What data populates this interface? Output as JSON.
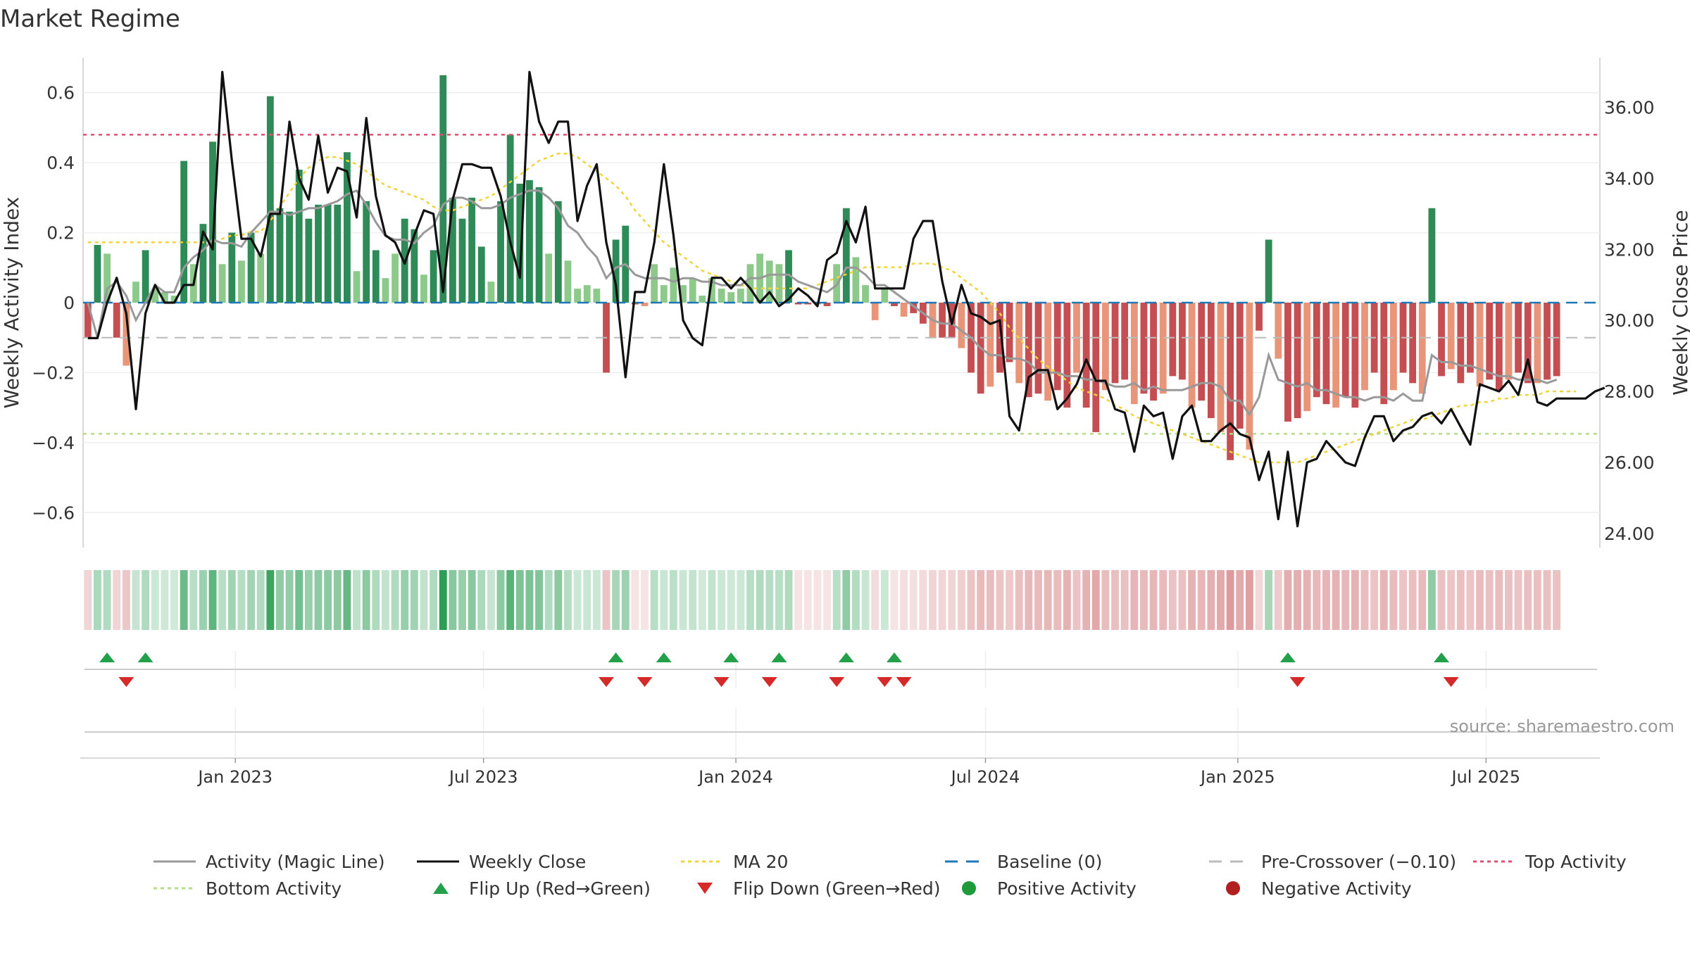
{
  "page": {
    "title": "Market Regime",
    "source": "source: sharemaestro.com"
  },
  "chart_data": {
    "type": "bar",
    "title": "Market Regime",
    "ylabel_left": "Weekly Activity Index",
    "ylabel_right": "Weekly Close Price",
    "ylim_left": [
      -0.7,
      0.7
    ],
    "ylim_right": [
      23.6,
      37.4
    ],
    "yticks_left": [
      "0.6",
      "0.4",
      "0.2",
      "0",
      "−0.2",
      "−0.4",
      "−0.6"
    ],
    "yticks_right": [
      "36.00",
      "34.00",
      "32.00",
      "30.00",
      "28.00",
      "26.00",
      "24.00"
    ],
    "x_ticks": [
      "Jan 2023",
      "Jul 2023",
      "Jan 2024",
      "Jul 2024",
      "Jan 2025",
      "Jul 2025"
    ],
    "x_tick_dates": [
      "2023-01-01",
      "2023-07-01",
      "2024-01-01",
      "2024-07-01",
      "2025-01-01",
      "2025-07-01"
    ],
    "x_start_date": "2022-09-12",
    "week_count": 158,
    "top_activity": 0.48,
    "bottom_activity": -0.375,
    "pre_crossover": -0.1,
    "baseline": 0,
    "grid": true,
    "legend_position": "bottom",
    "colors": {
      "pos_strong": "#2e8b57",
      "pos_light": "#8cc98a",
      "neg_strong": "#c44e52",
      "neg_light": "#e8957a",
      "magic_line": "#999999",
      "close": "#111111",
      "ma20": "#f0d43a",
      "baseline": "#1f77b4",
      "pre_crossover": "#bbbbbb",
      "top_activity": "#e0506e",
      "bottom_activity": "#b5dc8a",
      "flip_up": "#23a04a",
      "flip_down": "#d62a2a",
      "positive_marker": "#1f9a3a",
      "negative_marker": "#b02020"
    },
    "activity": [
      -0.1,
      0.165,
      0.14,
      -0.1,
      -0.18,
      0.06,
      0.15,
      0.04,
      0.03,
      0.02,
      0.405,
      0.11,
      0.225,
      0.46,
      0.11,
      0.2,
      0.12,
      0.2,
      0.14,
      0.59,
      0.27,
      0.26,
      0.38,
      0.24,
      0.28,
      0.28,
      0.28,
      0.43,
      0.09,
      0.29,
      0.15,
      0.07,
      0.14,
      0.24,
      0.21,
      0.08,
      0.15,
      0.65,
      0.3,
      0.24,
      0.3,
      0.16,
      0.06,
      0.29,
      0.48,
      0.34,
      0.35,
      0.33,
      0.14,
      0.29,
      0.12,
      0.04,
      0.05,
      0.04,
      -0.2,
      0.18,
      0.22,
      -0.005,
      -0.01,
      0.11,
      0.05,
      0.1,
      0.05,
      0.07,
      0.02,
      0.07,
      0.04,
      0.03,
      0.04,
      0.11,
      0.14,
      0.12,
      0.11,
      0.15,
      -0.005,
      -0.005,
      -0.005,
      -0.01,
      0.11,
      0.27,
      0.13,
      0.05,
      -0.05,
      0.04,
      -0.01,
      -0.04,
      -0.03,
      -0.06,
      -0.1,
      -0.1,
      -0.1,
      -0.13,
      -0.2,
      -0.26,
      -0.24,
      -0.2,
      -0.17,
      -0.23,
      -0.27,
      -0.26,
      -0.28,
      -0.25,
      -0.3,
      -0.2,
      -0.3,
      -0.37,
      -0.25,
      -0.23,
      -0.22,
      -0.29,
      -0.26,
      -0.28,
      -0.26,
      -0.21,
      -0.22,
      -0.3,
      -0.28,
      -0.33,
      -0.37,
      -0.45,
      -0.36,
      -0.42,
      -0.08,
      0.18,
      -0.16,
      -0.34,
      -0.33,
      -0.31,
      -0.27,
      -0.29,
      -0.3,
      -0.27,
      -0.3,
      -0.25,
      -0.2,
      -0.29,
      -0.25,
      -0.2,
      -0.23,
      -0.26,
      0.27,
      -0.21,
      -0.19,
      -0.23,
      -0.2,
      -0.24,
      -0.22,
      -0.25,
      -0.22,
      -0.2,
      -0.23,
      -0.23,
      -0.22,
      -0.21
    ],
    "magic_line": [
      0.0,
      -0.1,
      0.04,
      0.06,
      0.02,
      -0.05,
      0.0,
      0.05,
      0.03,
      0.03,
      0.1,
      0.13,
      0.15,
      0.18,
      0.17,
      0.17,
      0.16,
      0.2,
      0.23,
      0.26,
      0.26,
      0.25,
      0.26,
      0.27,
      0.27,
      0.28,
      0.29,
      0.31,
      0.32,
      0.28,
      0.23,
      0.19,
      0.18,
      0.18,
      0.17,
      0.2,
      0.22,
      0.28,
      0.3,
      0.3,
      0.29,
      0.27,
      0.27,
      0.28,
      0.3,
      0.31,
      0.32,
      0.32,
      0.3,
      0.27,
      0.22,
      0.2,
      0.16,
      0.13,
      0.07,
      0.1,
      0.11,
      0.08,
      0.07,
      0.07,
      0.07,
      0.06,
      0.07,
      0.07,
      0.06,
      0.06,
      0.05,
      0.05,
      0.05,
      0.07,
      0.07,
      0.08,
      0.08,
      0.08,
      0.06,
      0.05,
      0.04,
      0.03,
      0.05,
      0.1,
      0.1,
      0.08,
      0.05,
      0.05,
      0.03,
      0.01,
      -0.01,
      -0.03,
      -0.05,
      -0.06,
      -0.06,
      -0.08,
      -0.1,
      -0.13,
      -0.15,
      -0.15,
      -0.16,
      -0.16,
      -0.17,
      -0.2,
      -0.2,
      -0.2,
      -0.21,
      -0.21,
      -0.22,
      -0.22,
      -0.23,
      -0.24,
      -0.24,
      -0.23,
      -0.25,
      -0.24,
      -0.25,
      -0.25,
      -0.25,
      -0.24,
      -0.23,
      -0.23,
      -0.24,
      -0.28,
      -0.28,
      -0.32,
      -0.27,
      -0.15,
      -0.22,
      -0.23,
      -0.24,
      -0.23,
      -0.25,
      -0.25,
      -0.26,
      -0.27,
      -0.27,
      -0.28,
      -0.27,
      -0.27,
      -0.28,
      -0.26,
      -0.28,
      -0.28,
      -0.15,
      -0.17,
      -0.17,
      -0.18,
      -0.18,
      -0.19,
      -0.2,
      -0.21,
      -0.21,
      -0.22,
      -0.22,
      -0.22,
      -0.23,
      -0.22
    ],
    "weekly_close": [
      29.5,
      29.5,
      30.5,
      31.2,
      30.2,
      27.5,
      30.2,
      31.0,
      30.5,
      30.5,
      31.0,
      31.0,
      32.5,
      32.0,
      37.0,
      34.5,
      32.3,
      32.3,
      31.8,
      33.0,
      33.0,
      35.6,
      34.0,
      33.4,
      35.2,
      33.6,
      34.3,
      34.2,
      32.9,
      35.7,
      33.5,
      32.4,
      32.2,
      31.6,
      32.4,
      33.1,
      33.0,
      30.8,
      33.4,
      34.4,
      34.4,
      34.3,
      34.3,
      33.5,
      32.2,
      31.2,
      37.0,
      35.6,
      35.0,
      35.6,
      35.6,
      32.8,
      33.8,
      34.4,
      32.2,
      31.0,
      28.4,
      30.8,
      30.8,
      32.2,
      34.4,
      32.4,
      30.0,
      29.5,
      29.3,
      31.2,
      31.2,
      30.9,
      31.2,
      30.9,
      30.5,
      30.8,
      30.4,
      30.6,
      30.9,
      30.7,
      30.4,
      31.7,
      31.9,
      32.8,
      32.2,
      33.2,
      30.9,
      30.9,
      30.9,
      30.9,
      32.3,
      32.8,
      32.8,
      31.1,
      29.9,
      31.0,
      30.2,
      30.1,
      29.9,
      30.0,
      27.3,
      26.9,
      28.4,
      28.6,
      28.6,
      27.5,
      27.8,
      28.2,
      28.9,
      28.3,
      28.3,
      27.5,
      27.4,
      26.3,
      27.6,
      27.3,
      27.4,
      26.1,
      27.3,
      27.6,
      26.6,
      26.6,
      26.9,
      27.1,
      26.8,
      26.7,
      25.5,
      26.3,
      24.4,
      26.3,
      24.2,
      26.0,
      26.1,
      26.6,
      26.3,
      26.0,
      25.9,
      26.7,
      27.3,
      27.3,
      26.6,
      26.9,
      27.0,
      27.3,
      27.4,
      27.1,
      27.5,
      27.0,
      26.5,
      28.2,
      28.1,
      28.0,
      28.3,
      27.9,
      28.9,
      27.7,
      27.6,
      27.8,
      27.8,
      27.8,
      27.8,
      28.0,
      28.1
    ],
    "ma20": [
      32.2,
      32.2,
      32.2,
      32.2,
      32.2,
      32.2,
      32.2,
      32.2,
      32.2,
      32.2,
      32.2,
      32.2,
      32.2,
      32.2,
      32.3,
      32.4,
      32.4,
      32.5,
      32.5,
      32.8,
      33.2,
      33.6,
      34.0,
      34.3,
      34.5,
      34.6,
      34.6,
      34.5,
      34.4,
      34.2,
      34.0,
      33.8,
      33.7,
      33.6,
      33.5,
      33.4,
      33.2,
      33.1,
      33.1,
      33.2,
      33.3,
      33.4,
      33.5,
      33.7,
      33.9,
      34.1,
      34.3,
      34.5,
      34.6,
      34.7,
      34.7,
      34.6,
      34.4,
      34.2,
      34.0,
      33.8,
      33.5,
      33.1,
      32.8,
      32.5,
      32.2,
      32.0,
      31.8,
      31.6,
      31.4,
      31.3,
      31.2,
      31.1,
      31.0,
      30.9,
      30.9,
      30.9,
      30.9,
      30.9,
      30.9,
      30.9,
      31.0,
      31.1,
      31.2,
      31.3,
      31.4,
      31.5,
      31.5,
      31.5,
      31.5,
      31.5,
      31.6,
      31.6,
      31.6,
      31.5,
      31.4,
      31.2,
      31.0,
      30.8,
      30.5,
      30.2,
      29.8,
      29.5,
      29.2,
      28.9,
      28.7,
      28.5,
      28.3,
      28.1,
      28.0,
      27.9,
      27.8,
      27.6,
      27.5,
      27.3,
      27.2,
      27.1,
      27.0,
      26.9,
      26.8,
      26.7,
      26.6,
      26.5,
      26.4,
      26.3,
      26.2,
      26.1,
      26.0,
      26.0,
      26.0,
      26.0,
      26.0,
      26.1,
      26.2,
      26.3,
      26.4,
      26.5,
      26.6,
      26.7,
      26.8,
      26.9,
      27.0,
      27.1,
      27.2,
      27.2,
      27.3,
      27.4,
      27.5,
      27.6,
      27.6,
      27.7,
      27.7,
      27.8,
      27.8,
      27.9,
      27.9,
      27.9,
      28.0,
      28.0,
      28.0,
      28.0
    ],
    "flip_up": [
      2,
      6,
      55,
      60,
      67,
      72,
      79,
      84,
      125,
      141
    ],
    "flip_down": [
      4,
      54,
      58,
      66,
      71,
      78,
      83,
      85,
      126,
      142
    ],
    "legend": [
      {
        "label": "Activity (Magic Line)",
        "kind": "line",
        "color": "#999999",
        "dash": ""
      },
      {
        "label": "Weekly Close",
        "kind": "line",
        "color": "#111111",
        "dash": ""
      },
      {
        "label": "MA 20",
        "kind": "line",
        "color": "#f0d43a",
        "dash": "dotted"
      },
      {
        "label": "Baseline (0)",
        "kind": "line",
        "color": "#1f77b4",
        "dash": "dashed"
      },
      {
        "label": "Pre-Crossover (−0.10)",
        "kind": "line",
        "color": "#bbbbbb",
        "dash": "dashed"
      },
      {
        "label": "Top Activity",
        "kind": "line",
        "color": "#e0506e",
        "dash": "dotted"
      },
      {
        "label": "Bottom Activity",
        "kind": "line",
        "color": "#b5dc8a",
        "dash": "dotted"
      },
      {
        "label": "Flip Up (Red→Green)",
        "kind": "tri-up",
        "color": "#23a04a",
        "dash": ""
      },
      {
        "label": "Flip Down (Green→Red)",
        "kind": "tri-down",
        "color": "#d62a2a",
        "dash": ""
      },
      {
        "label": "Positive Activity",
        "kind": "dot",
        "color": "#1f9a3a",
        "dash": ""
      },
      {
        "label": "Negative Activity",
        "kind": "dot",
        "color": "#b02020",
        "dash": ""
      }
    ]
  }
}
